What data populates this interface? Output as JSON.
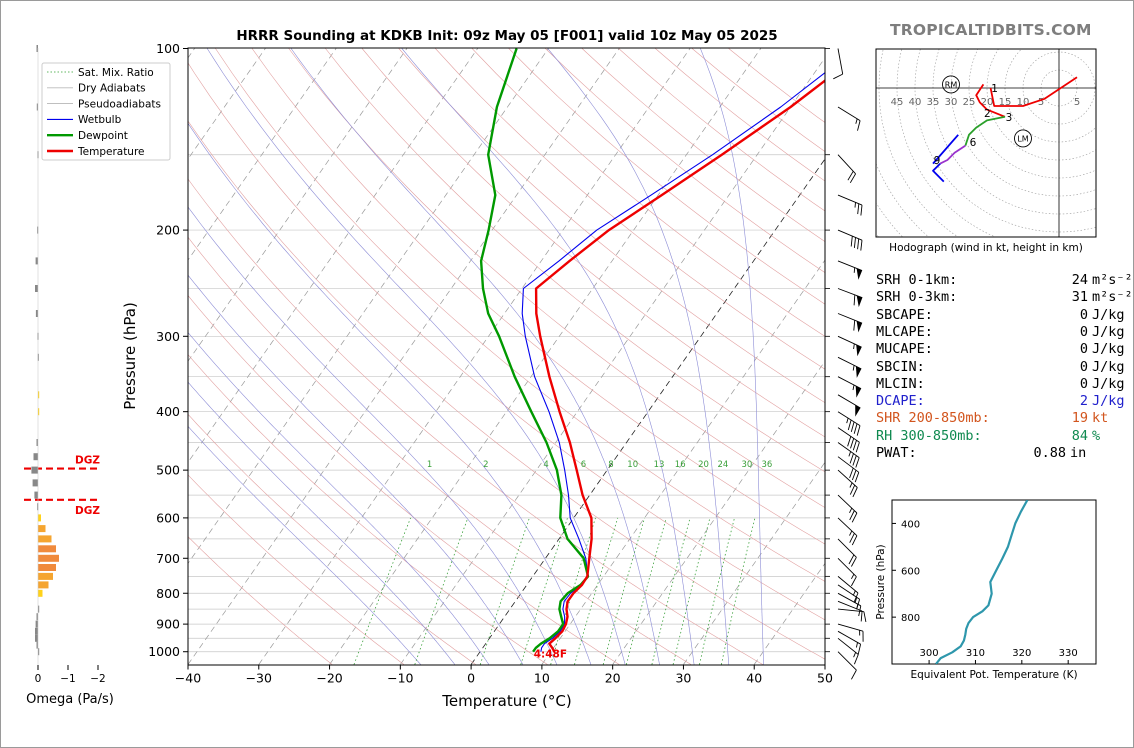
{
  "brand": "TROPICALTIDBITS.COM",
  "chart_data": [
    {
      "type": "line",
      "title": "HRRR Sounding at KDKB Init: 09z May 05 [F001] valid 10z May 05 2025",
      "xlabel": "Temperature (°C)",
      "ylabel": "Pressure (hPa)",
      "xlim": [
        -40,
        50
      ],
      "ylim": [
        1050,
        100
      ],
      "yscale": "log",
      "x_ticks": [
        -40,
        -30,
        -20,
        -10,
        0,
        10,
        20,
        30,
        40,
        50
      ],
      "x_tick_labels": [
        "−40",
        "−30",
        "−20",
        "−10",
        "0",
        "10",
        "20",
        "30",
        "40",
        "50"
      ],
      "y_ticks": [
        100,
        200,
        300,
        400,
        500,
        600,
        700,
        800,
        900,
        1000
      ],
      "legend_position": "top-left",
      "legend": [
        {
          "name": "Sat. Mix. Ratio",
          "color": "#2ca02c",
          "style": "dotted"
        },
        {
          "name": "Dry Adiabats",
          "color": "#bbbbbb",
          "style": "solid"
        },
        {
          "name": "Pseudoadiabats",
          "color": "#aaaaaa",
          "style": "solid"
        },
        {
          "name": "Wetbulb",
          "color": "#0000ee",
          "style": "solid"
        },
        {
          "name": "Dewpoint",
          "color": "#009900",
          "style": "solid"
        },
        {
          "name": "Temperature",
          "color": "#ee0000",
          "style": "solid"
        }
      ],
      "series": [
        {
          "name": "Temperature",
          "color": "#ee0000",
          "pressure": [
            1000,
            985,
            970,
            950,
            925,
            900,
            875,
            850,
            825,
            800,
            775,
            750,
            700,
            650,
            600,
            550,
            500,
            450,
            400,
            350,
            300,
            275,
            250,
            225,
            200,
            175,
            150,
            125,
            100
          ],
          "values": [
            10.5,
            9.8,
            9.0,
            9.3,
            9.6,
            9.4,
            8.9,
            8.0,
            7.4,
            7.4,
            7.8,
            7.7,
            6.2,
            4.6,
            2.5,
            -1.0,
            -4.3,
            -8.0,
            -12.5,
            -17.4,
            -22.7,
            -25.5,
            -28.0,
            -26.0,
            -23.5,
            -19.5,
            -15.0,
            -10.0,
            -5.0
          ]
        },
        {
          "name": "Dewpoint",
          "color": "#009900",
          "pressure": [
            1000,
            985,
            970,
            950,
            925,
            900,
            875,
            850,
            825,
            800,
            775,
            750,
            700,
            650,
            600,
            550,
            500,
            450,
            400,
            350,
            300,
            275,
            250,
            225,
            200,
            175,
            150,
            125,
            100
          ],
          "values": [
            7.5,
            7.5,
            7.8,
            8.5,
            9.0,
            9.0,
            8.0,
            7.0,
            6.4,
            6.6,
            7.6,
            7.8,
            5.4,
            1.2,
            -1.9,
            -4.0,
            -7.1,
            -11.3,
            -16.5,
            -22.3,
            -28.5,
            -32.3,
            -35.5,
            -38.5,
            -40.5,
            -43.0,
            -48.0,
            -51.5,
            -54.5
          ]
        },
        {
          "name": "Wetbulb",
          "color": "#0000ee",
          "pressure": [
            1000,
            985,
            970,
            950,
            925,
            900,
            875,
            850,
            825,
            800,
            775,
            750,
            700,
            650,
            600,
            550,
            500,
            450,
            400,
            350,
            300,
            275,
            250,
            225,
            200,
            175,
            150,
            125,
            100
          ],
          "values": [
            8.6,
            8.3,
            8.3,
            8.9,
            9.3,
            9.2,
            8.5,
            7.5,
            6.9,
            7.0,
            7.7,
            7.75,
            5.7,
            2.8,
            -0.5,
            -3.0,
            -6.0,
            -9.5,
            -14.0,
            -19.5,
            -24.8,
            -27.5,
            -29.8,
            -27.5,
            -25.2,
            -21.0,
            -16.3,
            -11.4,
            -6.5
          ]
        }
      ],
      "annotations": {
        "dgz_labels": [
          "DGZ",
          "DGZ"
        ],
        "dgz_pressure_bounds": [
          497,
          560
        ],
        "surface_label": "4:48F",
        "mixing_ratio_labels": [
          "1",
          "2",
          "4",
          "6",
          "8",
          "10",
          "13",
          "16",
          "20",
          "24",
          "30",
          "36"
        ],
        "mixing_ratio_values": [
          1,
          2,
          4,
          6,
          8,
          10,
          13,
          16,
          20,
          24,
          30,
          36
        ],
        "dry_adiabat_thetas_k": [
          250,
          260,
          270,
          280,
          290,
          300,
          310,
          320,
          330,
          340,
          350,
          360,
          370,
          380,
          390,
          400,
          410,
          420,
          430,
          440,
          450,
          460,
          470,
          480
        ],
        "moist_adiabat_thetaw_c": [
          -10,
          -5,
          0,
          5,
          10,
          15,
          20,
          25,
          30,
          35,
          40
        ],
        "wind_barbs": [
          {
            "p": 100,
            "u": -2,
            "v": 11
          },
          {
            "p": 125,
            "u": -13,
            "v": 8
          },
          {
            "p": 150,
            "u": -12,
            "v": 13
          },
          {
            "p": 175,
            "u": -24,
            "v": 10
          },
          {
            "p": 200,
            "u": -38,
            "v": 16
          },
          {
            "p": 225,
            "u": -50,
            "v": 20
          },
          {
            "p": 250,
            "u": -58,
            "v": 22
          },
          {
            "p": 275,
            "u": -55,
            "v": 22
          },
          {
            "p": 300,
            "u": -52,
            "v": 24
          },
          {
            "p": 325,
            "u": -50,
            "v": 25
          },
          {
            "p": 350,
            "u": -48,
            "v": 25
          },
          {
            "p": 375,
            "u": -44,
            "v": 26
          },
          {
            "p": 400,
            "u": -38,
            "v": 24
          },
          {
            "p": 425,
            "u": -32,
            "v": 22
          },
          {
            "p": 450,
            "u": -28,
            "v": 20
          },
          {
            "p": 475,
            "u": -24,
            "v": 18
          },
          {
            "p": 500,
            "u": -20,
            "v": 18
          },
          {
            "p": 550,
            "u": -18,
            "v": 17
          },
          {
            "p": 600,
            "u": -17,
            "v": 16
          },
          {
            "p": 650,
            "u": -14,
            "v": 14
          },
          {
            "p": 700,
            "u": -12,
            "v": 12
          },
          {
            "p": 750,
            "u": -12,
            "v": 10
          },
          {
            "p": 775,
            "u": -12,
            "v": 8
          },
          {
            "p": 800,
            "u": -11,
            "v": 6
          },
          {
            "p": 825,
            "u": -10,
            "v": 4
          },
          {
            "p": 850,
            "u": -10,
            "v": 1
          },
          {
            "p": 900,
            "u": -14,
            "v": 4
          },
          {
            "p": 925,
            "u": -14,
            "v": 8
          },
          {
            "p": 950,
            "u": -10,
            "v": 8
          },
          {
            "p": 1000,
            "u": -8,
            "v": 8
          }
        ]
      }
    },
    {
      "type": "bar",
      "title": "",
      "xlabel": "Omega (Pa/s)",
      "xlim": [
        0.2,
        -2
      ],
      "x_ticks": [
        0,
        -1,
        -2
      ],
      "x_tick_labels": [
        "0",
        "−1",
        "−2"
      ],
      "pressure": [
        100,
        125,
        150,
        200,
        225,
        250,
        275,
        300,
        325,
        375,
        400,
        450,
        475,
        500,
        525,
        550,
        575,
        600,
        625,
        650,
        675,
        700,
        725,
        750,
        775,
        800,
        850,
        875,
        900,
        925,
        950,
        975,
        1000
      ],
      "values": [
        0.05,
        0.04,
        0.02,
        0.03,
        0.08,
        0.1,
        0.07,
        0.02,
        0.01,
        -0.02,
        -0.02,
        0.05,
        0.15,
        0.22,
        0.18,
        0.12,
        0.03,
        -0.1,
        -0.25,
        -0.45,
        -0.6,
        -0.7,
        -0.6,
        -0.5,
        -0.35,
        -0.15,
        0.0,
        0.05,
        0.08,
        0.1,
        0.1,
        0.05,
        0.0
      ]
    },
    {
      "type": "line",
      "title": "Hodograph (wind in kt, height in km)",
      "ring_labels": [
        "45",
        "40",
        "35",
        "30",
        "25",
        "20",
        "15",
        "10",
        "5",
        "5"
      ],
      "ring_label_values": [
        -45,
        -40,
        -35,
        -30,
        -25,
        -20,
        -15,
        -10,
        -5,
        5
      ],
      "height_labels": [
        "1",
        "2",
        "3",
        "6",
        "9"
      ],
      "markers": [
        "RM",
        "LM"
      ],
      "markers_uv": [
        [
          -30,
          1
        ],
        [
          -10,
          -14
        ]
      ],
      "segments": [
        {
          "color": "#ee0000",
          "uv": [
            [
              -19,
              0
            ],
            [
              -18,
              -5
            ],
            [
              -10,
              -5
            ],
            [
              -4,
              -3
            ],
            [
              5,
              3
            ]
          ]
        },
        {
          "color": "#ee0000",
          "uv": [
            [
              -21,
              1
            ],
            [
              -23,
              -2
            ],
            [
              -22,
              -4
            ],
            [
              -20,
              -6
            ],
            [
              -15,
              -8
            ]
          ]
        },
        {
          "color": "#2aa02a",
          "uv": [
            [
              -15,
              -8
            ],
            [
              -20,
              -9
            ],
            [
              -23,
              -11
            ],
            [
              -25,
              -13
            ],
            [
              -26,
              -16
            ]
          ]
        },
        {
          "color": "#9933cc",
          "uv": [
            [
              -26,
              -16
            ],
            [
              -29,
              -18
            ],
            [
              -31,
              -20
            ],
            [
              -33,
              -21
            ]
          ]
        },
        {
          "color": "#0000ee",
          "uv": [
            [
              -33,
              -21
            ],
            [
              -35,
              -23
            ],
            [
              -34,
              -24
            ],
            [
              -32,
              -26
            ]
          ]
        },
        {
          "color": "#0000ee",
          "uv": [
            [
              -35,
              -21
            ],
            [
              -28,
              -13
            ]
          ]
        }
      ],
      "height_label_uv": [
        [
          -19,
          0
        ],
        [
          -21,
          -7
        ],
        [
          -15,
          -8
        ],
        [
          -25,
          -15
        ],
        [
          -35,
          -20
        ]
      ]
    },
    {
      "type": "line",
      "title": "",
      "xlabel": "Equivalent Pot. Temperature (K)",
      "ylabel": "Pressure (hPa)",
      "xlim": [
        292,
        336
      ],
      "ylim": [
        1000,
        300
      ],
      "x_ticks": [
        300,
        310,
        320,
        330
      ],
      "y_ticks": [
        400,
        600,
        800
      ],
      "series": [
        {
          "name": "",
          "color": "#2e97ac",
          "pressure": [
            1000,
            975,
            950,
            925,
            900,
            875,
            850,
            825,
            800,
            775,
            750,
            700,
            650,
            600,
            550,
            500,
            450,
            400,
            350,
            300
          ],
          "values": [
            301.5,
            302.5,
            305.0,
            306.8,
            307.5,
            307.8,
            308.0,
            308.5,
            309.5,
            311.5,
            312.8,
            313.5,
            313.2,
            314.5,
            315.8,
            317.0,
            317.8,
            318.6,
            319.8,
            321.2
          ]
        }
      ]
    }
  ],
  "stats": [
    {
      "label": "SRH 0-1km:",
      "value": "24",
      "unit": "m²s⁻²",
      "color": "#000000"
    },
    {
      "label": "SRH 0-3km:",
      "value": "31",
      "unit": "m²s⁻²",
      "color": "#000000"
    },
    {
      "label": "SBCAPE:",
      "value": "0",
      "unit": "J/kg",
      "color": "#000000"
    },
    {
      "label": "MLCAPE:",
      "value": "0",
      "unit": "J/kg",
      "color": "#000000"
    },
    {
      "label": "MUCAPE:",
      "value": "0",
      "unit": "J/kg",
      "color": "#000000"
    },
    {
      "label": "SBCIN:",
      "value": "0",
      "unit": "J/kg",
      "color": "#000000"
    },
    {
      "label": "MLCIN:",
      "value": "0",
      "unit": "J/kg",
      "color": "#000000"
    },
    {
      "label": "DCAPE:",
      "value": "2",
      "unit": "J/kg",
      "color": "#2020cc"
    },
    {
      "label": "SHR 200-850mb:",
      "value": "19",
      "unit": "kt",
      "color": "#d2551e"
    },
    {
      "label": "RH 300-850mb:",
      "value": "84",
      "unit": "%",
      "color": "#108a50"
    },
    {
      "label": "PWAT:",
      "value": "0.88",
      "unit": "in",
      "color": "#000000"
    }
  ]
}
